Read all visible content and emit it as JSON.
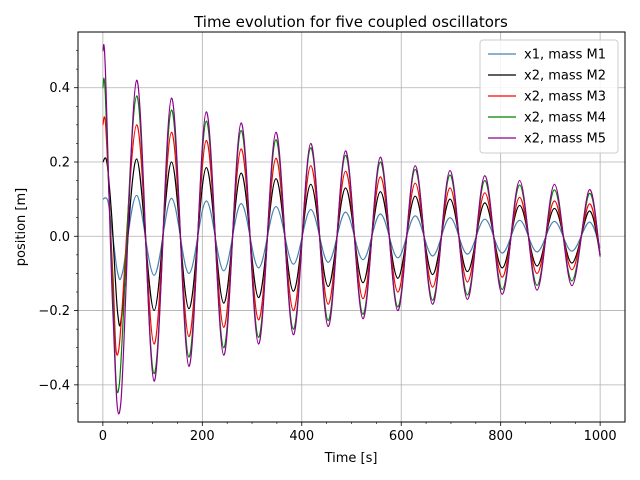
{
  "chart_data": {
    "type": "line",
    "title": "Time evolution for five coupled oscillators",
    "xlabel": "Time [s]",
    "ylabel": "position [m]",
    "xlim": [
      -50,
      1050
    ],
    "ylim": [
      -0.5,
      0.55
    ],
    "x_ticks": [
      0,
      200,
      400,
      600,
      800,
      1000
    ],
    "x_tick_labels": [
      "0",
      "200",
      "400",
      "600",
      "800",
      "1000"
    ],
    "y_ticks": [
      -0.4,
      -0.2,
      0.0,
      0.2,
      0.4
    ],
    "y_tick_labels": [
      "−0.4",
      "−0.2",
      "0.0",
      "0.2",
      "0.4"
    ],
    "grid": true,
    "legend_position": "top-right",
    "series": [
      {
        "name": "x1, mass M1",
        "color": "#4682b4",
        "x": [
          0,
          10,
          20,
          30,
          40,
          68,
          103,
          138,
          173,
          208,
          243,
          278,
          313,
          348,
          383,
          418,
          453,
          488,
          523,
          558,
          593,
          628,
          663,
          698,
          733,
          768,
          803,
          838,
          873,
          908,
          943,
          978,
          1000
        ],
        "y": [
          0.1,
          0.095,
          0.0,
          -0.1,
          -0.095,
          0.11,
          -0.105,
          0.102,
          -0.1,
          0.095,
          -0.093,
          0.088,
          -0.085,
          0.08,
          -0.075,
          0.072,
          -0.07,
          0.065,
          -0.063,
          0.06,
          -0.058,
          0.055,
          -0.053,
          0.05,
          -0.048,
          0.046,
          -0.045,
          0.043,
          -0.042,
          0.04,
          -0.04,
          0.038,
          -0.03
        ]
      },
      {
        "name": "x2, mass M2",
        "color": "#000000",
        "x": [
          0,
          8,
          18,
          30,
          40,
          68,
          103,
          138,
          173,
          208,
          243,
          278,
          313,
          348,
          383,
          418,
          453,
          488,
          523,
          558,
          593,
          628,
          663,
          698,
          733,
          768,
          803,
          838,
          873,
          908,
          943,
          978,
          1000
        ],
        "y": [
          0.2,
          0.2,
          0.05,
          -0.21,
          -0.19,
          0.208,
          -0.2,
          0.2,
          -0.195,
          0.185,
          -0.18,
          0.17,
          -0.165,
          0.155,
          -0.148,
          0.14,
          -0.135,
          0.13,
          -0.125,
          0.12,
          -0.113,
          0.108,
          -0.103,
          0.1,
          -0.095,
          0.09,
          -0.085,
          0.083,
          -0.08,
          0.075,
          -0.072,
          0.068,
          -0.05
        ]
      },
      {
        "name": "x2, mass M3",
        "color": "#ff0000",
        "x": [
          0,
          6,
          20,
          32,
          68,
          103,
          138,
          173,
          208,
          243,
          278,
          313,
          348,
          383,
          418,
          453,
          488,
          523,
          558,
          593,
          628,
          663,
          698,
          733,
          768,
          803,
          838,
          873,
          908,
          943,
          978,
          1000
        ],
        "y": [
          0.3,
          0.29,
          -0.1,
          -0.305,
          0.3,
          -0.29,
          0.28,
          -0.27,
          0.258,
          -0.245,
          0.235,
          -0.225,
          0.21,
          -0.2,
          0.19,
          -0.183,
          0.175,
          -0.168,
          0.16,
          -0.15,
          0.143,
          -0.137,
          0.13,
          -0.123,
          0.117,
          -0.11,
          0.105,
          -0.1,
          0.095,
          -0.09,
          0.087,
          -0.05
        ]
      },
      {
        "name": "x2, mass M4",
        "color": "#008000",
        "x": [
          0,
          5,
          20,
          33,
          68,
          103,
          138,
          173,
          208,
          243,
          278,
          313,
          348,
          383,
          418,
          453,
          488,
          523,
          558,
          593,
          628,
          663,
          698,
          733,
          768,
          803,
          838,
          873,
          908,
          943,
          978,
          1000
        ],
        "y": [
          0.4,
          0.38,
          -0.15,
          -0.4,
          0.378,
          -0.37,
          0.34,
          -0.325,
          0.31,
          -0.3,
          0.285,
          -0.272,
          0.26,
          -0.25,
          0.238,
          -0.227,
          0.218,
          -0.21,
          0.2,
          -0.19,
          0.18,
          -0.172,
          0.165,
          -0.158,
          0.15,
          -0.143,
          0.138,
          -0.132,
          0.125,
          -0.12,
          0.115,
          -0.05
        ]
      },
      {
        "name": "x2, mass M5",
        "color": "#8b008b",
        "x": [
          0,
          5,
          20,
          36,
          68,
          103,
          138,
          173,
          208,
          243,
          278,
          313,
          348,
          383,
          418,
          453,
          488,
          523,
          558,
          593,
          628,
          663,
          698,
          733,
          768,
          803,
          838,
          873,
          908,
          943,
          978,
          1000
        ],
        "y": [
          0.5,
          0.45,
          -0.2,
          -0.45,
          0.42,
          -0.39,
          0.372,
          -0.35,
          0.335,
          -0.32,
          0.305,
          -0.29,
          0.28,
          -0.265,
          0.25,
          -0.243,
          0.23,
          -0.222,
          0.213,
          -0.2,
          0.19,
          -0.183,
          0.177,
          -0.17,
          0.163,
          -0.156,
          0.15,
          -0.145,
          0.14,
          -0.133,
          0.125,
          -0.055
        ]
      }
    ]
  }
}
